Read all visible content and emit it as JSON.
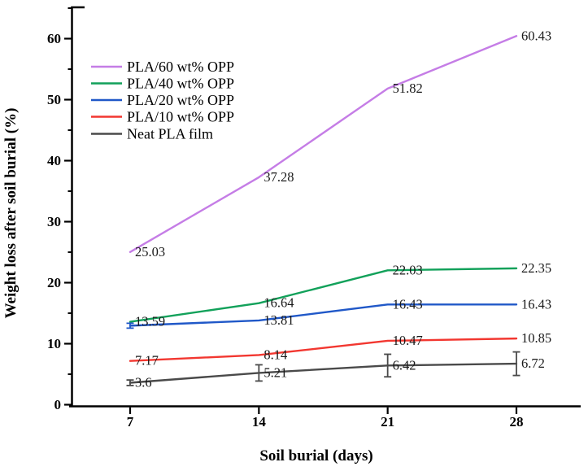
{
  "figure": {
    "xlabel": "Soil burial (days)",
    "ylabel": "Weight loss after soil burial (%)"
  },
  "chart_data": {
    "type": "line",
    "x": [
      7,
      14,
      21,
      28
    ],
    "xlabel": "Soil burial (days)",
    "ylabel": "Weight loss after soil burial (%)",
    "xticks": [
      "7",
      "14",
      "21",
      "28"
    ],
    "yticks": [
      "0",
      "10",
      "20",
      "30",
      "40",
      "50",
      "60"
    ],
    "ylim": [
      0,
      65
    ],
    "grid": false,
    "legend_position": "upper-left-inside",
    "series": [
      {
        "name": "PLA/60 wt% OPP",
        "color": "#c57de6",
        "values": [
          25.03,
          37.28,
          51.82,
          60.43
        ],
        "labels": [
          "25.03",
          "37.28",
          "51.82",
          "60.43"
        ],
        "error": [
          null,
          null,
          null,
          null
        ]
      },
      {
        "name": "PLA/40 wt% OPP",
        "color": "#12a15a",
        "values": [
          13.59,
          16.64,
          22.03,
          22.35
        ],
        "labels": [
          "13.59",
          "16.64",
          "22.03",
          "22.35"
        ],
        "error": [
          null,
          null,
          null,
          null
        ]
      },
      {
        "name": "PLA/20 wt% OPP",
        "color": "#2058c8",
        "values": [
          12.95,
          13.81,
          16.43,
          16.43
        ],
        "labels": [
          null,
          "13.81",
          "16.43",
          "16.43"
        ],
        "error": [
          0.4,
          null,
          null,
          null
        ]
      },
      {
        "name": "PLA/10 wt% OPP",
        "color": "#f23730",
        "values": [
          7.17,
          8.14,
          10.47,
          10.85
        ],
        "labels": [
          "7.17",
          "8.14",
          "10.47",
          "10.85"
        ],
        "error": [
          null,
          null,
          null,
          null
        ]
      },
      {
        "name": "Neat PLA film",
        "color": "#4a4a4a",
        "values": [
          3.6,
          5.21,
          6.42,
          6.72
        ],
        "labels": [
          "3.6",
          "5.21",
          "6.42",
          "6.72"
        ],
        "error": [
          0.45,
          1.33,
          1.85,
          1.93
        ]
      }
    ]
  }
}
